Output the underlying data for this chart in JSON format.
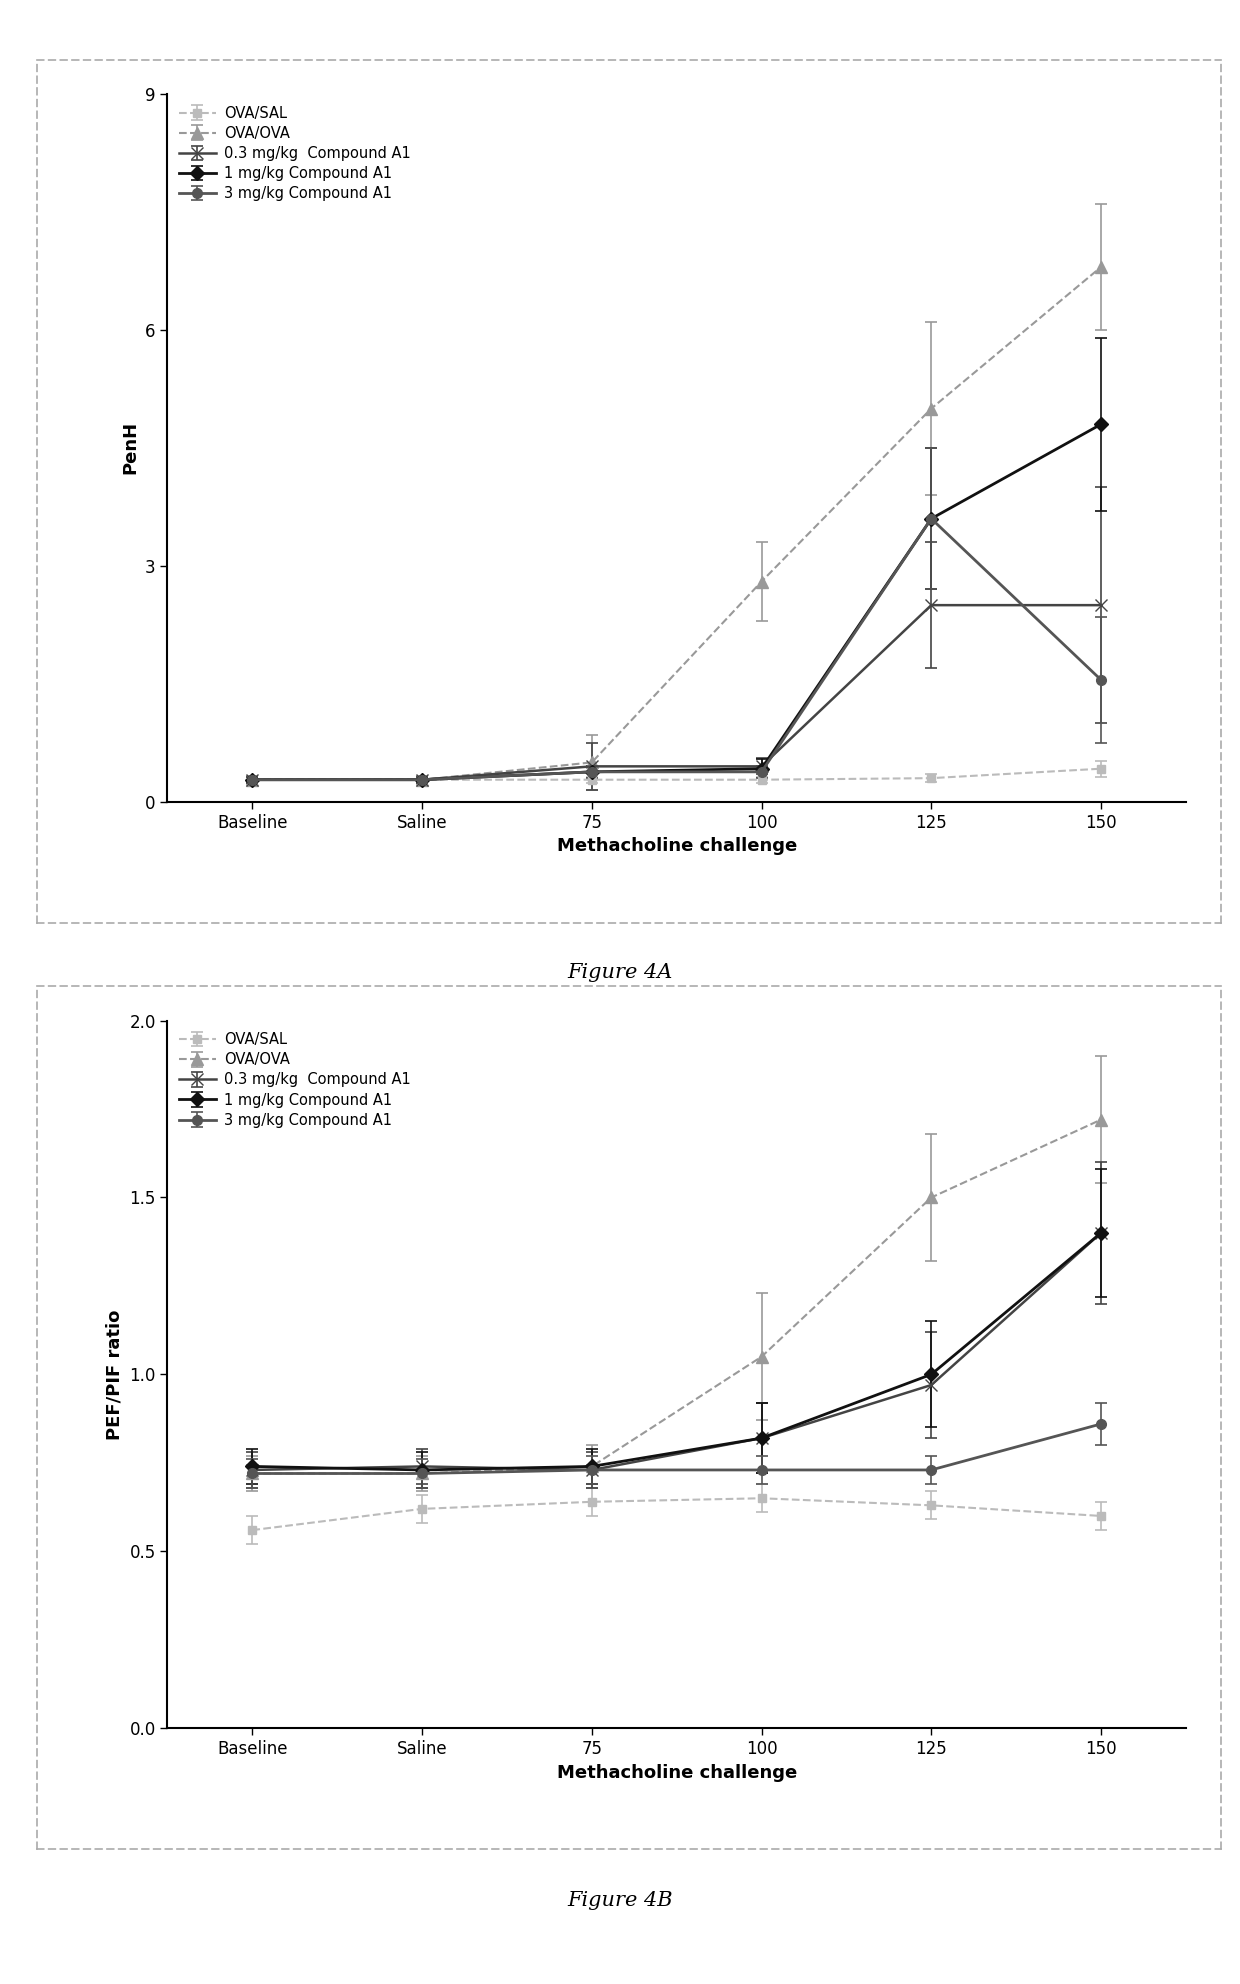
{
  "x_labels": [
    "Baseline",
    "Saline",
    "75",
    "100",
    "125",
    "150"
  ],
  "xlabel": "Methacholine challenge",
  "fig4a": {
    "ylabel": "PenH",
    "ylim": [
      0,
      9
    ],
    "yticks": [
      0,
      3,
      6,
      9
    ],
    "caption": "Figure 4A",
    "series": [
      {
        "label": "OVA/SAL",
        "color": "#bbbbbb",
        "linewidth": 1.5,
        "marker": "s",
        "markersize": 6,
        "linestyle": "--",
        "y": [
          0.28,
          0.28,
          0.28,
          0.28,
          0.3,
          0.42
        ],
        "yerr": [
          0.04,
          0.04,
          0.04,
          0.04,
          0.05,
          0.1
        ]
      },
      {
        "label": "OVA/OVA",
        "color": "#999999",
        "linewidth": 1.5,
        "marker": "^",
        "markersize": 8,
        "linestyle": "--",
        "y": [
          0.28,
          0.28,
          0.5,
          2.8,
          5.0,
          6.8
        ],
        "yerr": [
          0.05,
          0.05,
          0.35,
          0.5,
          1.1,
          0.8
        ]
      },
      {
        "label": "0.3 mg/kg  Compound A1",
        "color": "#444444",
        "linewidth": 1.8,
        "marker": "x",
        "markersize": 9,
        "linestyle": "-",
        "y": [
          0.28,
          0.28,
          0.45,
          0.45,
          2.5,
          2.5
        ],
        "yerr": [
          0.04,
          0.04,
          0.3,
          0.1,
          0.8,
          1.5
        ]
      },
      {
        "label": "1 mg/kg Compound A1",
        "color": "#111111",
        "linewidth": 2.0,
        "marker": "D",
        "markersize": 7,
        "linestyle": "-",
        "y": [
          0.28,
          0.28,
          0.38,
          0.42,
          3.6,
          4.8
        ],
        "yerr": [
          0.04,
          0.04,
          0.08,
          0.12,
          0.9,
          1.1
        ]
      },
      {
        "label": "3 mg/kg Compound A1",
        "color": "#555555",
        "linewidth": 2.0,
        "marker": "o",
        "markersize": 7,
        "linestyle": "-",
        "y": [
          0.28,
          0.28,
          0.38,
          0.38,
          3.6,
          1.55
        ],
        "yerr": [
          0.04,
          0.04,
          0.08,
          0.08,
          0.9,
          0.8
        ]
      }
    ]
  },
  "fig4b": {
    "ylabel": "PEF/PIF ratio",
    "ylim": [
      0.0,
      2.0
    ],
    "yticks": [
      0.0,
      0.5,
      1.0,
      1.5,
      2.0
    ],
    "caption": "Figure 4B",
    "series": [
      {
        "label": "OVA/SAL",
        "color": "#bbbbbb",
        "linewidth": 1.5,
        "marker": "s",
        "markersize": 6,
        "linestyle": "--",
        "y": [
          0.56,
          0.62,
          0.64,
          0.65,
          0.63,
          0.6
        ],
        "yerr": [
          0.04,
          0.04,
          0.04,
          0.04,
          0.04,
          0.04
        ]
      },
      {
        "label": "OVA/OVA",
        "color": "#999999",
        "linewidth": 1.5,
        "marker": "^",
        "markersize": 8,
        "linestyle": "--",
        "y": [
          0.72,
          0.72,
          0.74,
          1.05,
          1.5,
          1.72
        ],
        "yerr": [
          0.05,
          0.05,
          0.06,
          0.18,
          0.18,
          0.18
        ]
      },
      {
        "label": "0.3 mg/kg  Compound A1",
        "color": "#444444",
        "linewidth": 1.8,
        "marker": "x",
        "markersize": 9,
        "linestyle": "-",
        "y": [
          0.73,
          0.74,
          0.73,
          0.82,
          0.97,
          1.4
        ],
        "yerr": [
          0.05,
          0.05,
          0.05,
          0.1,
          0.15,
          0.2
        ]
      },
      {
        "label": "1 mg/kg Compound A1",
        "color": "#111111",
        "linewidth": 2.0,
        "marker": "D",
        "markersize": 7,
        "linestyle": "-",
        "y": [
          0.74,
          0.73,
          0.74,
          0.82,
          1.0,
          1.4
        ],
        "yerr": [
          0.05,
          0.05,
          0.05,
          0.1,
          0.15,
          0.18
        ]
      },
      {
        "label": "3 mg/kg Compound A1",
        "color": "#555555",
        "linewidth": 2.0,
        "marker": "o",
        "markersize": 7,
        "linestyle": "-",
        "y": [
          0.72,
          0.72,
          0.73,
          0.73,
          0.73,
          0.86
        ],
        "yerr": [
          0.04,
          0.04,
          0.04,
          0.04,
          0.04,
          0.06
        ]
      }
    ]
  },
  "background_color": "#ffffff",
  "panel_border_color": "#aaaaaa",
  "axis_color": "#000000"
}
